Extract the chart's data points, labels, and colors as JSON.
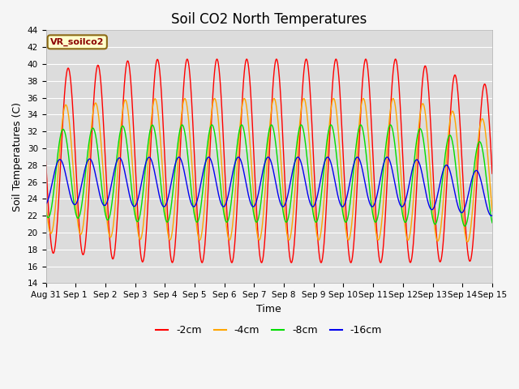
{
  "title": "Soil CO2 North Temperatures",
  "xlabel": "Time",
  "ylabel": "Soil Temperatures (C)",
  "ylim": [
    14,
    44
  ],
  "xlim_days": [
    0,
    15
  ],
  "plot_bg_color": "#dcdcdc",
  "fig_bg_color": "#f5f5f5",
  "legend_box_label": "VR_soilco2",
  "series": [
    {
      "label": "-2cm",
      "color": "#ff0000",
      "amplitude": 11.5,
      "mean": 28.5,
      "phase_shift": 0.0,
      "min_val": 17.0,
      "max_val": 42.0
    },
    {
      "label": "-4cm",
      "color": "#ffa500",
      "amplitude": 8.0,
      "mean": 27.5,
      "phase_shift": 0.08,
      "min_val": 20.0,
      "max_val": 36.5
    },
    {
      "label": "-8cm",
      "color": "#00dd00",
      "amplitude": 5.5,
      "mean": 27.0,
      "phase_shift": 0.17,
      "min_val": 22.0,
      "max_val": 33.0
    },
    {
      "label": "-16cm",
      "color": "#0000ee",
      "amplitude": 2.8,
      "mean": 26.0,
      "phase_shift": 0.28,
      "min_val": 23.5,
      "max_val": 28.5
    }
  ],
  "xtick_labels": [
    "Aug 31",
    "Sep 1",
    "Sep 2",
    "Sep 3",
    "Sep 4",
    "Sep 5",
    "Sep 6",
    "Sep 7",
    "Sep 8",
    "Sep 9",
    "Sep 10",
    "Sep 11",
    "Sep 12",
    "Sep 13",
    "Sep 14",
    "Sep 15"
  ],
  "xtick_positions": [
    0,
    1,
    2,
    3,
    4,
    5,
    6,
    7,
    8,
    9,
    10,
    11,
    12,
    13,
    14,
    15
  ],
  "ytick_positions": [
    14,
    16,
    18,
    20,
    22,
    24,
    26,
    28,
    30,
    32,
    34,
    36,
    38,
    40,
    42,
    44
  ],
  "title_fontsize": 12,
  "axis_label_fontsize": 9,
  "tick_fontsize": 7.5
}
